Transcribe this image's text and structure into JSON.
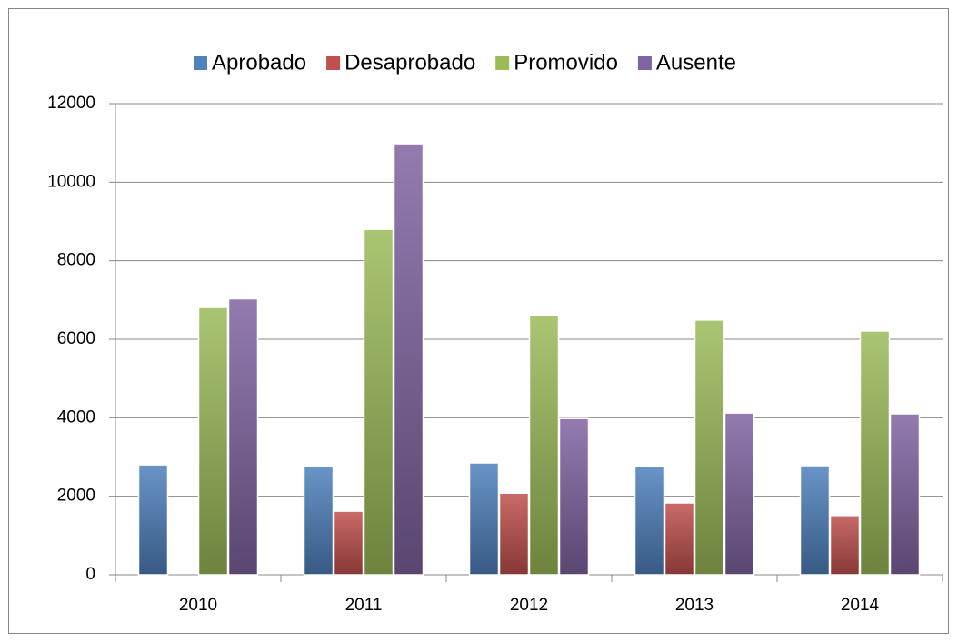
{
  "chart_data": {
    "type": "bar",
    "categories": [
      "2010",
      "2011",
      "2012",
      "2013",
      "2014"
    ],
    "series": [
      {
        "name": "Aprobado",
        "color": "#4f81bd",
        "values": [
          2800,
          2750,
          2850,
          2760,
          2780
        ]
      },
      {
        "name": "Desaprobado",
        "color": "#c0504d",
        "values": [
          0,
          1620,
          2080,
          1830,
          1510
        ]
      },
      {
        "name": "Promovido",
        "color": "#9bbb59",
        "values": [
          6810,
          8800,
          6600,
          6490,
          6210
        ]
      },
      {
        "name": "Ausente",
        "color": "#8064a2",
        "values": [
          7030,
          10980,
          3980,
          4120,
          4100
        ]
      }
    ],
    "ylim": [
      0,
      12000
    ],
    "yticks": [
      0,
      2000,
      4000,
      6000,
      8000,
      10000,
      12000
    ],
    "grid": true,
    "legend": "top"
  }
}
